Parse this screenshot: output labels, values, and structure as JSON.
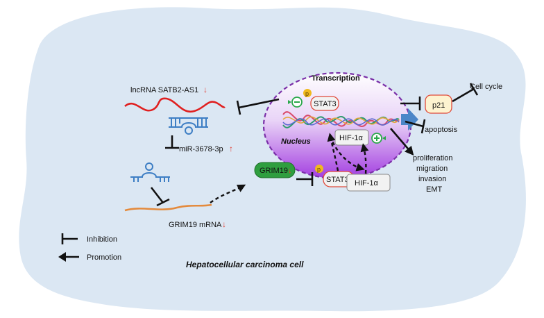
{
  "labels": {
    "lncrna": "lncRNA  SATB2-AS1",
    "lncrna_trend": "↓",
    "mirna": "miR-3678-3p",
    "mirna_trend": "↑",
    "grim19_mrna": "GRIM19 mRNA",
    "grim19_mrna_trend": "↓",
    "grim19_protein": "GRIM19",
    "grim19_protein_trend": "↓",
    "stat3_cytoplasm": "STAT3",
    "stat3_nucleus": "STAT3",
    "hif_nucleus": "HIF-1α",
    "hif_cytoplasm": "HIF-1α",
    "phospho_cyto": "p",
    "phospho_nucleus": "p",
    "transcription": "Transcription",
    "nucleus": "Nucleus",
    "p21": "p21",
    "cell_cycle": "Cell cycle",
    "apoptosis": "apoptosis",
    "outcomes": [
      "proliferation",
      "migration",
      "invasion",
      "EMT"
    ],
    "cell_name": "Hepatocellular carcinoma cell"
  },
  "legend": {
    "inhibition": "Inhibition",
    "promotion": "Promotion"
  },
  "colors": {
    "cell": "#dbe7f3",
    "nucleus_top": "#ffffff",
    "nucleus_bottom": "#a33ee0",
    "nucleus_border": "#7a2fa8",
    "lncrna": "#e02020",
    "mirna": "#3d7ec4",
    "mrna": "#e48a3c",
    "grim19": "#2f9e3f",
    "p21_fill": "#fdf3d0",
    "p21_border": "#e04a3a",
    "phospho": "#f0b91e",
    "transcription_arrow": "#4a86c8",
    "trend": "#e23a2e"
  },
  "icons": {
    "minus_badge": "minus-circle-icon",
    "plus_badge": "plus-circle-icon"
  }
}
